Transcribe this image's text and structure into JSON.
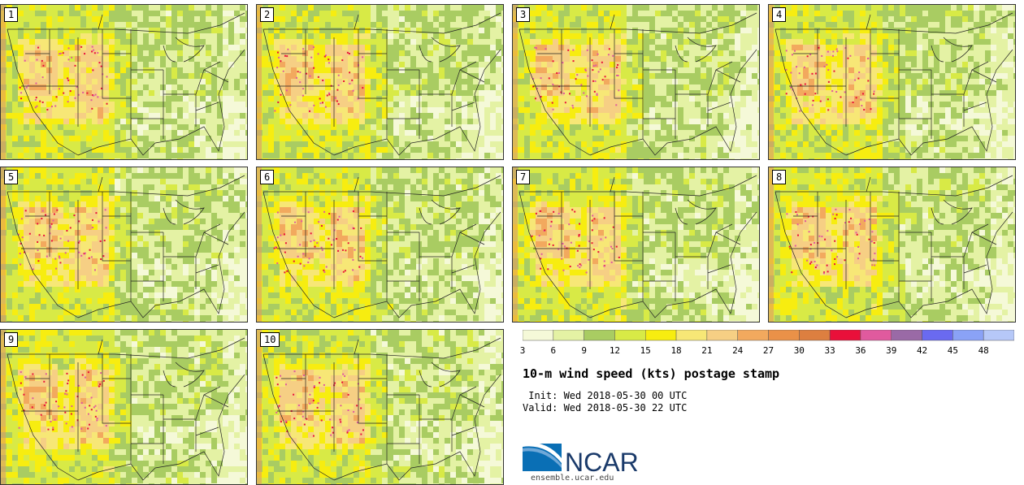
{
  "panels": [
    {
      "label": "1"
    },
    {
      "label": "2"
    },
    {
      "label": "3"
    },
    {
      "label": "4"
    },
    {
      "label": "5"
    },
    {
      "label": "6"
    },
    {
      "label": "7"
    },
    {
      "label": "8"
    },
    {
      "label": "9"
    },
    {
      "label": "10"
    }
  ],
  "colorbar": {
    "ticks": [
      "3",
      "6",
      "9",
      "12",
      "15",
      "18",
      "21",
      "24",
      "27",
      "30",
      "33",
      "36",
      "39",
      "42",
      "45",
      "48"
    ],
    "colors": [
      "#f5f9d8",
      "#e4f2a4",
      "#a9cc62",
      "#d8ea46",
      "#f7ed10",
      "#f7e776",
      "#f6cf84",
      "#f2a95e",
      "#ea9148",
      "#dd7f40",
      "#e9103a",
      "#e05a9e",
      "#9a6aa6",
      "#6a6af0",
      "#8aa2f6",
      "#b6c8f8"
    ]
  },
  "title": "10-m wind speed (kts) postage stamp",
  "init": " Init: Wed 2018-05-30 00 UTC",
  "valid": "Valid: Wed 2018-05-30 22 UTC",
  "logo_text": "NCAR",
  "url": "ensemble.ucar.edu"
}
